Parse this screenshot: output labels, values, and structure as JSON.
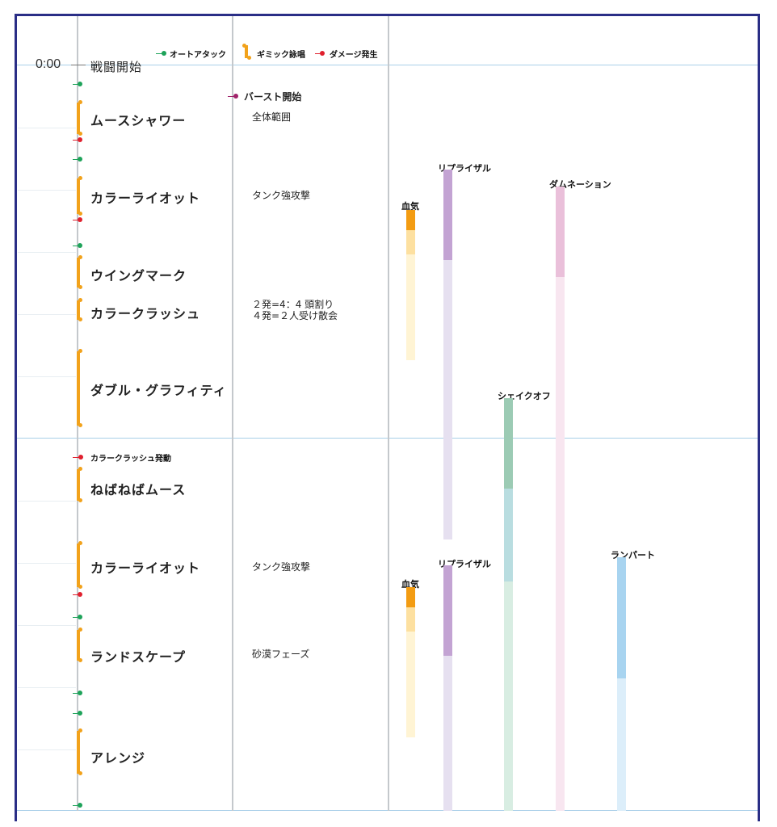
{
  "timeline": {
    "start_time": "0:00",
    "start_label": "戦闘開始"
  },
  "legend": {
    "auto_attack": "オートアタック",
    "gimmick": "ギミック詠唱",
    "damage": "ダメージ発生"
  },
  "colors": {
    "auto_attack": "#1ea35a",
    "gimmick": "#f2a21b",
    "damage": "#e0202e",
    "burst": "#a0236a",
    "border": "#2a2e86",
    "divider": "#a9cfe8"
  },
  "burst": {
    "label": "バースト開始",
    "note": "全体範囲"
  },
  "mechanics": [
    {
      "name": "ムースシャワー",
      "note": ""
    },
    {
      "name": "カラーライオット",
      "note": "タンク強攻撃"
    },
    {
      "name": "ウイングマーク",
      "note": ""
    },
    {
      "name": "カラークラッシュ",
      "note": "２発=4：4 頭割り\n４発=２人受け散会"
    },
    {
      "name": "ダブル・グラフィティ",
      "note": ""
    },
    {
      "name": "ねばねばムース",
      "note": ""
    },
    {
      "name": "カラーライオット",
      "note": "タンク強攻撃"
    },
    {
      "name": "ランドスケープ",
      "note": "砂漠フェーズ"
    },
    {
      "name": "アレンジ",
      "note": ""
    }
  ],
  "trigger_label": "カラークラッシュ発動",
  "cooldowns": [
    {
      "label": "血気",
      "color": "#f39c12",
      "faint": "#fdeab5"
    },
    {
      "label": "リプライザル",
      "color": "#c3a3d3",
      "faint": "#e6e0f0"
    },
    {
      "label": "ダムネーション",
      "color": "#eac0da",
      "faint": "#f8e6f0"
    },
    {
      "label": "シェイクオフ",
      "color": "#9ccbb4",
      "faint": "#d8ede2"
    },
    {
      "label": "血気",
      "color": "#f39c12",
      "faint": "#fdeab5"
    },
    {
      "label": "リプライザル",
      "color": "#c3a3d3",
      "faint": "#e6e0f0"
    },
    {
      "label": "ランパート",
      "color": "#a8d4f0",
      "faint": "#dceefa"
    }
  ]
}
